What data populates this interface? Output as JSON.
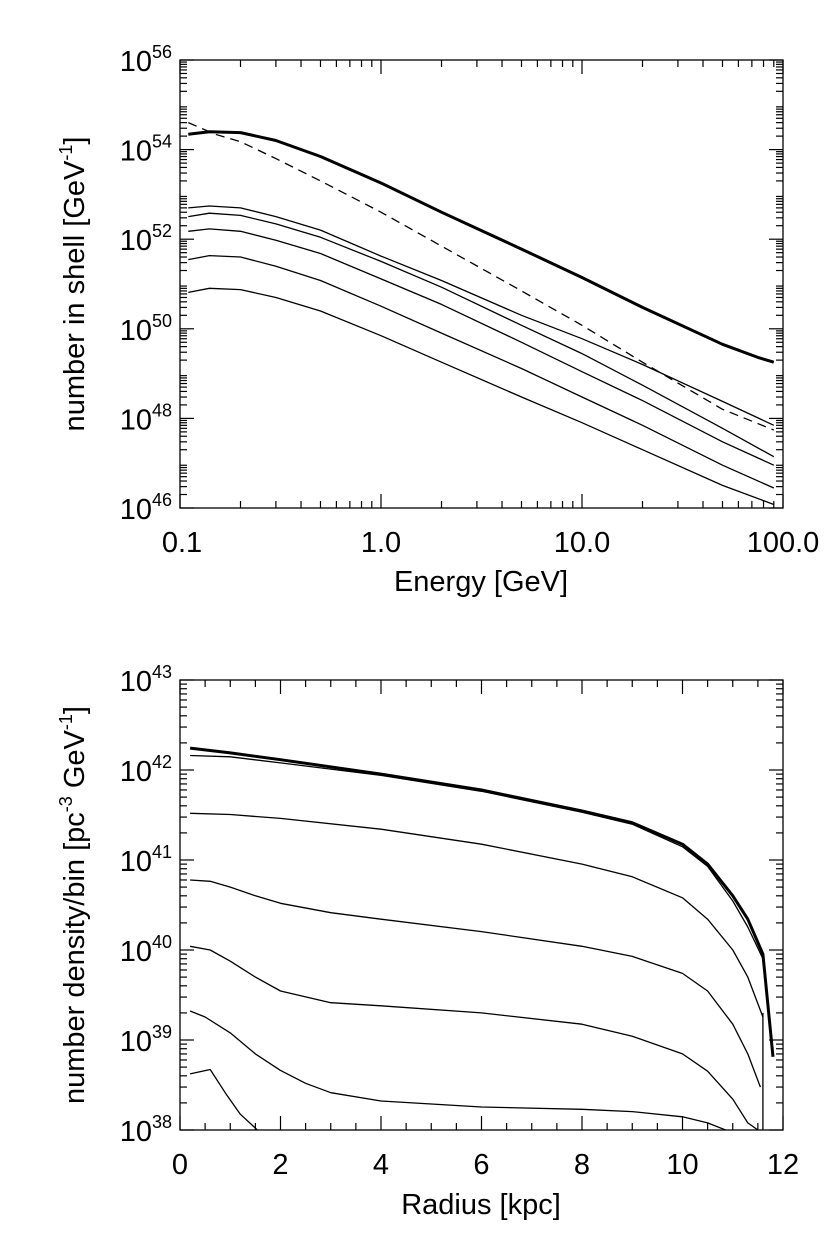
{
  "chart_data": [
    {
      "type": "line",
      "title": "",
      "xlabel": "Energy [GeV]",
      "ylabel": "number in shell [GeV",
      "ylabel_sup": "-1",
      "ylabel_end": "]",
      "xscale": "log",
      "yscale": "log",
      "xlim": [
        0.1,
        100
      ],
      "ylim": [
        1e+46,
        1e+56
      ],
      "x_ticks": [
        {
          "value": 0.1,
          "label": "0.1"
        },
        {
          "value": 1,
          "label": "1.0"
        },
        {
          "value": 10,
          "label": "10.0"
        },
        {
          "value": 100,
          "label": "100.0"
        }
      ],
      "y_ticks": [
        {
          "value": 1e+46,
          "base": "10",
          "exp": "46"
        },
        {
          "value": 1e+48,
          "base": "10",
          "exp": "48"
        },
        {
          "value": 1e+50,
          "base": "10",
          "exp": "50"
        },
        {
          "value": 1e+52,
          "base": "10",
          "exp": "52"
        },
        {
          "value": 1e+54,
          "base": "10",
          "exp": "54"
        },
        {
          "value": 1e+56,
          "base": "10",
          "exp": "56"
        }
      ],
      "grid": false,
      "series": [
        {
          "style": "thick",
          "x": [
            0.11,
            0.14,
            0.2,
            0.3,
            0.5,
            1,
            2,
            5,
            10,
            20,
            50,
            75,
            90
          ],
          "y": [
            2.2e+54,
            2.5e+54,
            2.4e+54,
            1.6e+54,
            7e+53,
            1.8e+53,
            4e+52,
            6e+51,
            1.4e+51,
            3e+50,
            4.5e+49,
            2.3e+49,
            1.8e+49
          ]
        },
        {
          "style": "dashed",
          "x": [
            0.11,
            0.15,
            0.2,
            0.3,
            0.5,
            1,
            2,
            5,
            10,
            20,
            50,
            90
          ],
          "y": [
            4e+54,
            2.2e+54,
            1.5e+54,
            6.3e+53,
            2e+53,
            4e+52,
            7e+51,
            7e+50,
            1.2e+50,
            1.8e+49,
            1.6e+48,
            5.5e+47
          ]
        },
        {
          "style": "thin",
          "x": [
            0.11,
            0.14,
            0.2,
            0.3,
            0.5,
            1,
            2,
            5,
            10,
            20,
            50,
            90
          ],
          "y": [
            5e+52,
            5.5e+52,
            5e+52,
            3.2e+52,
            1.6e+52,
            4.2e+51,
            1.2e+51,
            2e+50,
            6e+49,
            1.6e+49,
            2.4e+48,
            7e+47
          ]
        },
        {
          "style": "thin",
          "x": [
            0.11,
            0.14,
            0.2,
            0.3,
            0.5,
            1,
            2,
            5,
            10,
            20,
            50,
            90
          ],
          "y": [
            3.2e+52,
            3.8e+52,
            3.4e+52,
            2.2e+52,
            1.1e+52,
            3.2e+51,
            8.5e+50,
            1.2e+50,
            2.8e+49,
            5.5e+48,
            6e+47,
            1.4e+47
          ]
        },
        {
          "style": "thin",
          "x": [
            0.11,
            0.14,
            0.2,
            0.3,
            0.5,
            1,
            2,
            5,
            10,
            20,
            50,
            90
          ],
          "y": [
            1.5e+52,
            1.7e+52,
            1.5e+52,
            9.5e+51,
            4.8e+51,
            1.3e+51,
            3.5e+50,
            5e+49,
            1.1e+49,
            2.5e+48,
            3e+47,
            9e+46
          ]
        },
        {
          "style": "thin",
          "x": [
            0.11,
            0.14,
            0.2,
            0.3,
            0.5,
            1,
            2,
            5,
            10,
            20,
            50,
            90
          ],
          "y": [
            3.5e+51,
            4.3e+51,
            4e+51,
            2.5e+51,
            1.2e+51,
            3.2e+50,
            8e+49,
            1.3e+49,
            3e+48,
            7e+47,
            9e+46,
            2.8e+46
          ]
        },
        {
          "style": "thin",
          "x": [
            0.11,
            0.14,
            0.2,
            0.3,
            0.5,
            1,
            2,
            5,
            10,
            20,
            50,
            90
          ],
          "y": [
            6.5e+50,
            8e+50,
            7.5e+50,
            5e+50,
            2.5e+50,
            7e+49,
            1.8e+49,
            3e+48,
            8e+47,
            2e+47,
            3.2e+46,
            1.2e+46
          ]
        }
      ]
    },
    {
      "type": "line",
      "title": "",
      "xlabel": "Radius [kpc]",
      "ylabel": "number density/bin [pc",
      "ylabel_sup": "-3",
      "ylabel_mid": " GeV",
      "ylabel_sup2": "-1",
      "ylabel_end": "]",
      "xscale": "linear",
      "yscale": "log",
      "xlim": [
        0,
        12
      ],
      "ylim": [
        1e+38,
        1e+43
      ],
      "x_ticks": [
        {
          "value": 0,
          "label": "0"
        },
        {
          "value": 2,
          "label": "2"
        },
        {
          "value": 4,
          "label": "4"
        },
        {
          "value": 6,
          "label": "6"
        },
        {
          "value": 8,
          "label": "8"
        },
        {
          "value": 10,
          "label": "10"
        },
        {
          "value": 12,
          "label": "12"
        }
      ],
      "y_ticks": [
        {
          "value": 1e+38,
          "base": "10",
          "exp": "38"
        },
        {
          "value": 1e+39,
          "base": "10",
          "exp": "39"
        },
        {
          "value": 1e+40,
          "base": "10",
          "exp": "40"
        },
        {
          "value": 1e+41,
          "base": "10",
          "exp": "41"
        },
        {
          "value": 1e+42,
          "base": "10",
          "exp": "42"
        },
        {
          "value": 1e+43,
          "base": "10",
          "exp": "43"
        }
      ],
      "grid": false,
      "series": [
        {
          "style": "thick",
          "x": [
            0.2,
            1,
            2,
            4,
            6,
            8,
            9,
            10,
            10.5,
            11,
            11.3,
            11.6,
            11.8
          ],
          "y": [
            1.75e+42,
            1.55e+42,
            1.3e+42,
            9e+41,
            6e+41,
            3.5e+41,
            2.6e+41,
            1.5e+41,
            9e+40,
            4e+40,
            2.2e+40,
            9e+39,
            6.5e+38
          ]
        },
        {
          "style": "thin",
          "x": [
            0.2,
            1,
            2,
            4,
            6,
            8,
            9,
            10,
            10.5,
            11,
            11.3,
            11.6
          ],
          "y": [
            1.45e+42,
            1.4e+42,
            1.2e+42,
            8.7e+41,
            5.8e+41,
            3.4e+41,
            2.5e+41,
            1.4e+41,
            8.5e+40,
            3.5e+40,
            1.8e+40,
            8e+39
          ]
        },
        {
          "style": "thin",
          "x": [
            0.2,
            1,
            2,
            4,
            6,
            8,
            9,
            10,
            10.5,
            11,
            11.3,
            11.6
          ],
          "y": [
            3.3e+41,
            3.2e+41,
            2.9e+41,
            2.2e+41,
            1.5e+41,
            9e+40,
            6.5e+40,
            3.8e+40,
            2.2e+40,
            1e+40,
            5e+39,
            1.8e+39
          ]
        },
        {
          "style": "thin",
          "x": [
            0.2,
            0.6,
            1,
            1.5,
            2,
            3,
            4,
            6,
            8,
            9,
            10,
            10.5,
            11,
            11.3,
            11.55
          ],
          "y": [
            6e+40,
            5.8e+40,
            5e+40,
            4e+40,
            3.3e+40,
            2.6e+40,
            2.2e+40,
            1.6e+40,
            1.1e+40,
            8.5e+39,
            5.5e+39,
            3.5e+39,
            1.5e+39,
            7e+38,
            3e+38
          ]
        },
        {
          "style": "thin",
          "x": [
            0.2,
            0.6,
            1,
            1.5,
            2,
            3,
            4,
            6,
            8,
            9,
            10,
            10.5,
            11,
            11.3,
            11.5
          ],
          "y": [
            1.1e+40,
            1e+40,
            7.5e+39,
            5e+39,
            3.5e+39,
            2.6e+39,
            2.4e+39,
            2e+39,
            1.5e+39,
            1.1e+39,
            7e+38,
            4.5e+38,
            2.2e+38,
            1.2e+38,
            1e+38
          ]
        },
        {
          "style": "thin",
          "x": [
            0.2,
            0.5,
            1,
            1.5,
            2,
            2.5,
            3,
            4,
            6,
            8,
            9,
            10,
            10.5,
            11.3,
            11.6,
            11.6
          ],
          "y": [
            2.1e+39,
            1.8e+39,
            1.2e+39,
            7e+38,
            4.6e+38,
            3.3e+38,
            2.6e+38,
            2.1e+38,
            1.8e+38,
            1.7e+38,
            1.6e+38,
            1.4e+38,
            1.2e+38,
            8e+37,
            7e+37,
            2e+39
          ]
        },
        {
          "style": "thin",
          "x": [
            0.2,
            0.6,
            0.9,
            1.2,
            1.5,
            1.7
          ],
          "y": [
            4.2e+38,
            4.7e+38,
            2.6e+38,
            1.5e+38,
            1.05e+38,
            8e+37
          ]
        }
      ]
    }
  ]
}
